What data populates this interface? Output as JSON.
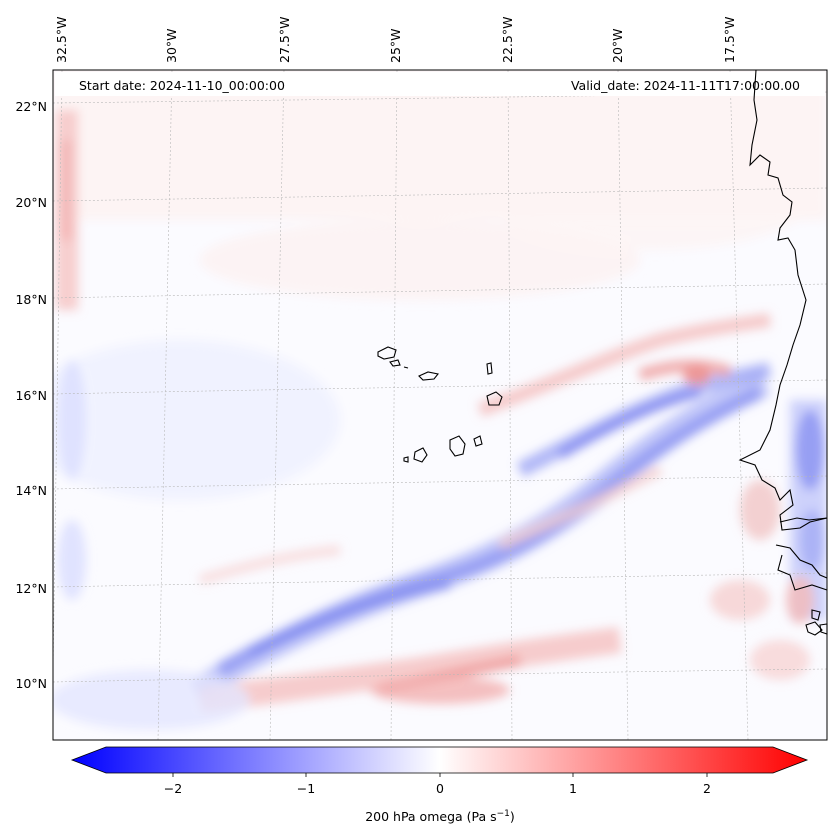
{
  "header": {
    "start_date": "Start date: 2024-11-10_00:00:00",
    "valid_date": "Valid_date: 2024-11-11T17:00:00.00"
  },
  "axes": {
    "lon_labels": [
      "32.5°W",
      "30°W",
      "27.5°W",
      "25°W",
      "22.5°W",
      "20°W",
      "17.5°W"
    ],
    "lat_labels": [
      "22°N",
      "20°N",
      "18°N",
      "16°N",
      "14°N",
      "12°N",
      "10°N"
    ]
  },
  "colorbar": {
    "label": "200 hPa omega (Pa s",
    "label_superscript": "−1",
    "label_close": ")",
    "ticks": [
      "−2",
      "−1",
      "0",
      "1",
      "2"
    ],
    "range": [
      -2.6,
      2.6
    ],
    "colormap": "bwr",
    "low_color": "#0000ff",
    "mid_color": "#ffffff",
    "high_color": "#ff0000"
  },
  "map": {
    "field": "200 hPa omega",
    "region": "Cabo Verde / West Africa coast"
  }
}
